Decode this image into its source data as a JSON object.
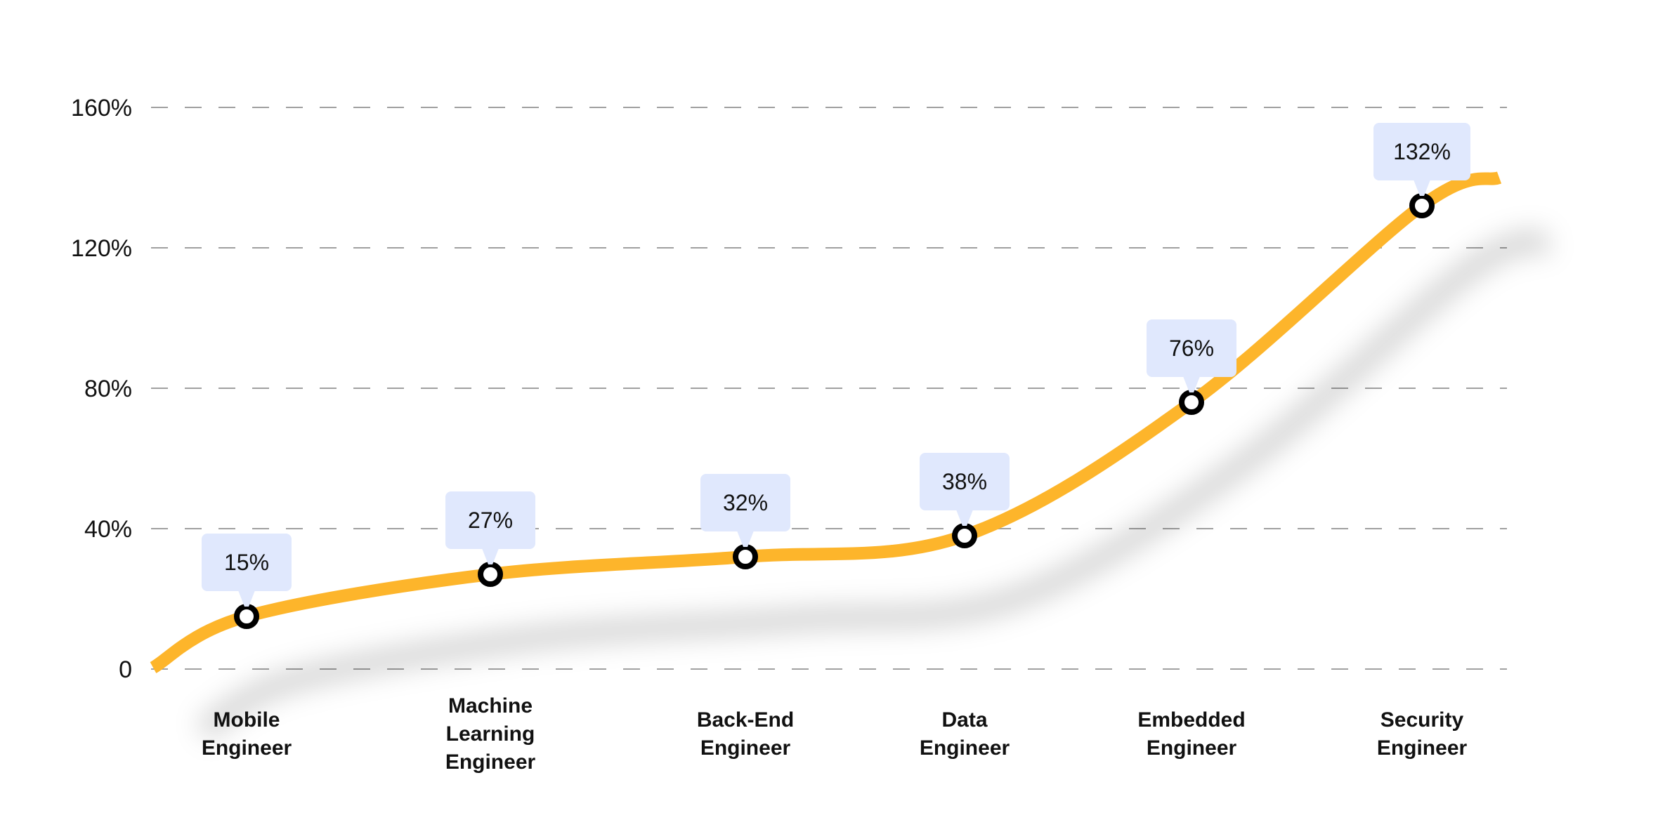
{
  "chart_data": {
    "type": "line",
    "categories": [
      "Mobile Engineer",
      "Machine Learning Engineer",
      "Back-End Engineer",
      "Data Engineer",
      "Embedded Engineer",
      "Security Engineer"
    ],
    "category_lines": [
      [
        "Mobile",
        "Engineer"
      ],
      [
        "Machine",
        "Learning",
        "Engineer"
      ],
      [
        "Back-End",
        "Engineer"
      ],
      [
        "Data",
        "Engineer"
      ],
      [
        "Embedded",
        "Engineer"
      ],
      [
        "Security",
        "Engineer"
      ]
    ],
    "values": [
      15,
      27,
      32,
      38,
      76,
      132
    ],
    "data_labels": [
      "15%",
      "27%",
      "32%",
      "38%",
      "76%",
      "132%"
    ],
    "yticks": [
      0,
      40,
      80,
      120,
      160
    ],
    "ytick_labels": [
      "0",
      "40%",
      "80%",
      "120%",
      "160%"
    ],
    "ylim": [
      0,
      160
    ],
    "grid": "horizontal dashed",
    "line_style": "smooth",
    "colors": {
      "line": "#FDB52B",
      "label_bg": "#E0E8FD",
      "marker": "#000000",
      "grid": "#A0A0A0"
    }
  }
}
